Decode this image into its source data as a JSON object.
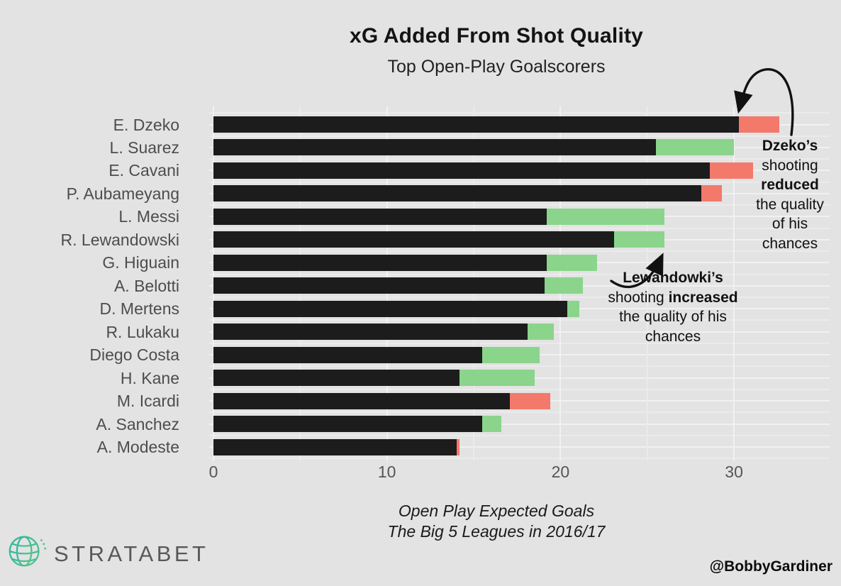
{
  "title": "xG Added From Shot Quality",
  "subtitle": "Top Open-Play Goalscorers",
  "caption": {
    "line1": "Open Play Expected Goals",
    "line2": "The Big 5 Leagues in 2016/17"
  },
  "footer": {
    "brand": "STRATABET",
    "logo_icon": "globe-icon",
    "credit": "@BobbyGardiner"
  },
  "colors": {
    "background": "#e3e3e3",
    "bar_dark": "#1c1c1c",
    "bar_increase": "#8bd48b",
    "bar_decrease": "#f3796b",
    "grid_major": "#f1f1f1",
    "grid_minor": "#ebebeb",
    "label_text": "#4d4d4d",
    "tick_text": "#555555",
    "annotation_text": "#111111",
    "arrow": "#111111",
    "brand_text": "#58595b",
    "logo_teal": "#2fb5a0",
    "logo_green": "#5bc48c"
  },
  "annotations": {
    "dzeko": {
      "lines": [
        [
          {
            "text": "Dzeko’s",
            "bold": true
          }
        ],
        [
          {
            "text": "shooting",
            "bold": false
          }
        ],
        [
          {
            "text": "reduced",
            "bold": true
          }
        ],
        [
          {
            "text": "the quality",
            "bold": false
          }
        ],
        [
          {
            "text": "of his",
            "bold": false
          }
        ],
        [
          {
            "text": "chances",
            "bold": false
          }
        ]
      ]
    },
    "lewandowski": {
      "lines": [
        [
          {
            "text": "Lewandowki’s",
            "bold": true
          }
        ],
        [
          {
            "text": "shooting ",
            "bold": false
          },
          {
            "text": "increased",
            "bold": true
          }
        ],
        [
          {
            "text": "the quality of his",
            "bold": false
          }
        ],
        [
          {
            "text": "chances",
            "bold": false
          }
        ]
      ]
    }
  },
  "chart_data": {
    "type": "bar",
    "orientation": "horizontal",
    "title": "xG Added From Shot Quality",
    "subtitle": "Top Open-Play Goalscorers",
    "xlabel": "Open Play Expected Goals — The Big 5 Leagues in 2016/17",
    "xlim": [
      0,
      35.5
    ],
    "xticks": [
      0,
      10,
      20,
      30
    ],
    "minor_xticks": [
      5,
      15,
      25
    ],
    "grid": true,
    "legend": false,
    "categories": [
      "E. Dzeko",
      "L. Suarez",
      "E. Cavani",
      "P. Aubameyang",
      "L. Messi",
      "R. Lewandowski",
      "G. Higuain",
      "A. Belotti",
      "D. Mertens",
      "R. Lukaku",
      "Diego Costa",
      "H. Kane",
      "M. Icardi",
      "A. Sanchez",
      "A. Modeste"
    ],
    "series": [
      {
        "name": "base open-play xG (dark)",
        "values": [
          30.3,
          25.5,
          28.6,
          28.1,
          19.2,
          23.1,
          19.2,
          19.1,
          20.4,
          18.1,
          15.5,
          14.2,
          17.1,
          15.5,
          14.0
        ]
      },
      {
        "name": "xG added from shot quality (colored extension)",
        "values": [
          2.3,
          4.5,
          2.5,
          1.2,
          6.8,
          2.9,
          2.9,
          2.2,
          0.7,
          1.5,
          3.3,
          4.3,
          2.3,
          1.1,
          0.2
        ],
        "direction": [
          "reduced",
          "increased",
          "reduced",
          "reduced",
          "increased",
          "increased",
          "increased",
          "increased",
          "increased",
          "increased",
          "increased",
          "increased",
          "reduced",
          "increased",
          "reduced"
        ]
      }
    ],
    "totals": [
      32.6,
      30.0,
      31.1,
      29.3,
      26.0,
      26.0,
      22.1,
      21.3,
      21.1,
      19.6,
      18.8,
      18.5,
      19.4,
      16.6,
      14.2
    ]
  }
}
